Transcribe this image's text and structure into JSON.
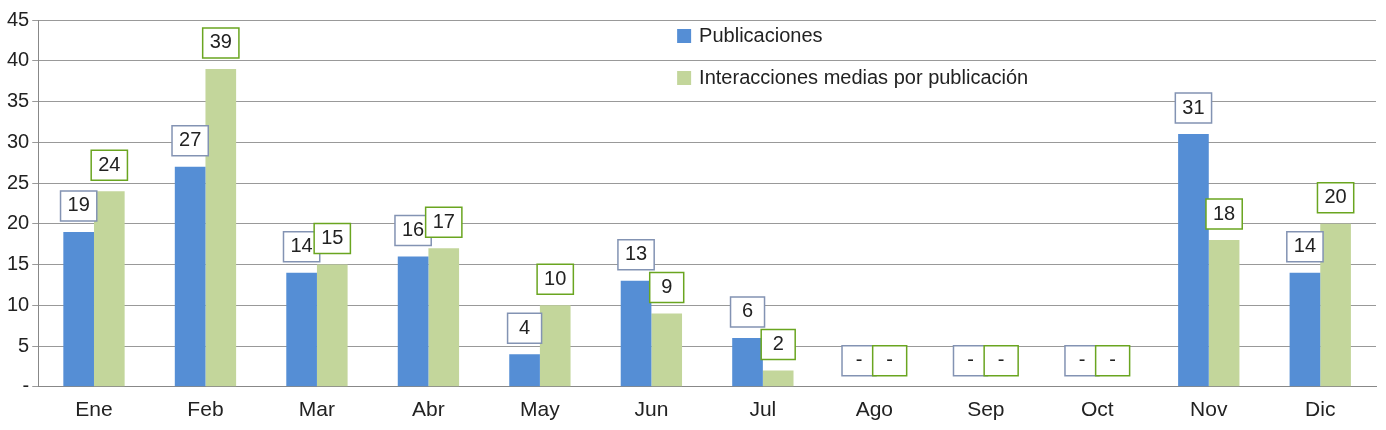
{
  "chart_data": {
    "type": "bar",
    "categories": [
      "Ene",
      "Feb",
      "Mar",
      "Abr",
      "May",
      "Jun",
      "Jul",
      "Ago",
      "Sep",
      "Oct",
      "Nov",
      "Dic"
    ],
    "series": [
      {
        "name": "Publicaciones",
        "color": "#558ed5",
        "values": [
          19,
          27,
          14,
          16,
          4,
          13,
          6,
          0,
          0,
          0,
          31,
          14
        ],
        "value_labels": [
          "19",
          "27",
          "14",
          "16",
          "4",
          "13",
          "6",
          "-",
          "-",
          "-",
          "31",
          "14"
        ]
      },
      {
        "name": "Interacciones medias por publicación",
        "color": "#c3d69b",
        "values": [
          24,
          39,
          15,
          17,
          10,
          9,
          2,
          0,
          0,
          0,
          18,
          20
        ],
        "value_labels": [
          "24",
          "39",
          "15",
          "17",
          "10",
          "9",
          "2",
          "-",
          "-",
          "-",
          "18",
          "20"
        ]
      }
    ],
    "ylim": [
      0,
      45
    ],
    "yticks": [
      {
        "value": 0,
        "label": "-"
      },
      5,
      10,
      15,
      20,
      25,
      30,
      35,
      40,
      45
    ],
    "grid": "y",
    "legend": "top"
  }
}
